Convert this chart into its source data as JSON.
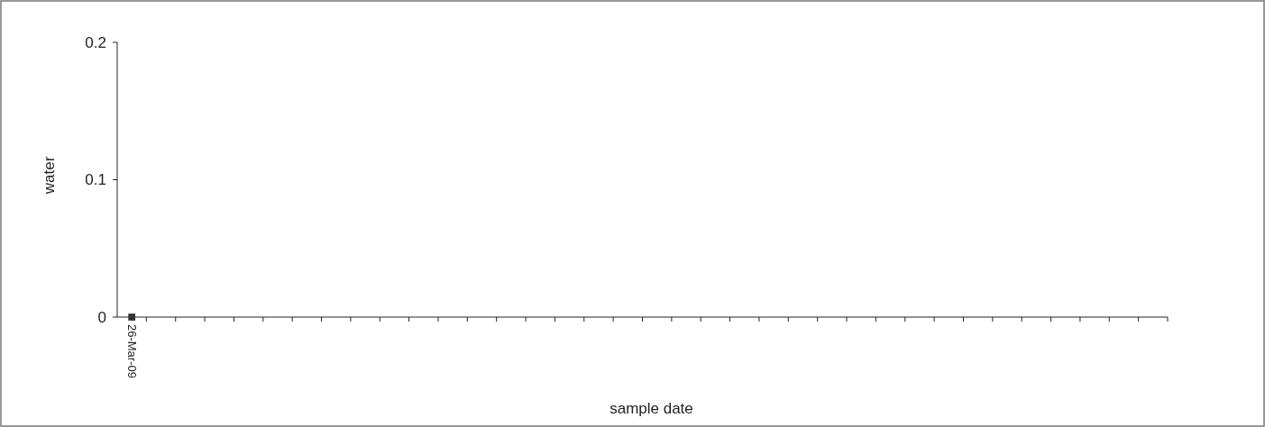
{
  "chart_data": {
    "type": "scatter",
    "xlabel": "sample date",
    "ylabel": "water",
    "categories": [
      "26-Mar-09",
      null,
      null,
      null,
      null,
      null,
      null,
      null,
      null,
      null,
      null,
      null,
      null,
      null,
      null,
      null,
      null,
      null,
      null,
      null,
      null,
      null,
      null,
      null,
      null,
      null,
      null,
      null,
      null,
      null,
      null,
      null,
      null,
      null,
      null,
      null
    ],
    "series": [
      {
        "color": "#333333",
        "values": [
          0,
          null,
          null,
          null,
          null,
          null,
          null,
          null,
          null,
          null,
          null,
          null,
          null,
          null,
          null,
          null,
          null,
          null,
          null,
          null,
          null,
          null,
          null,
          null,
          null,
          null,
          null,
          null,
          null,
          null,
          null,
          null,
          null,
          null,
          null,
          null
        ]
      }
    ],
    "ylim": [
      0,
      0.2
    ],
    "yticks": [
      0,
      0.1,
      0.2
    ],
    "marker": "square",
    "grid": false
  }
}
